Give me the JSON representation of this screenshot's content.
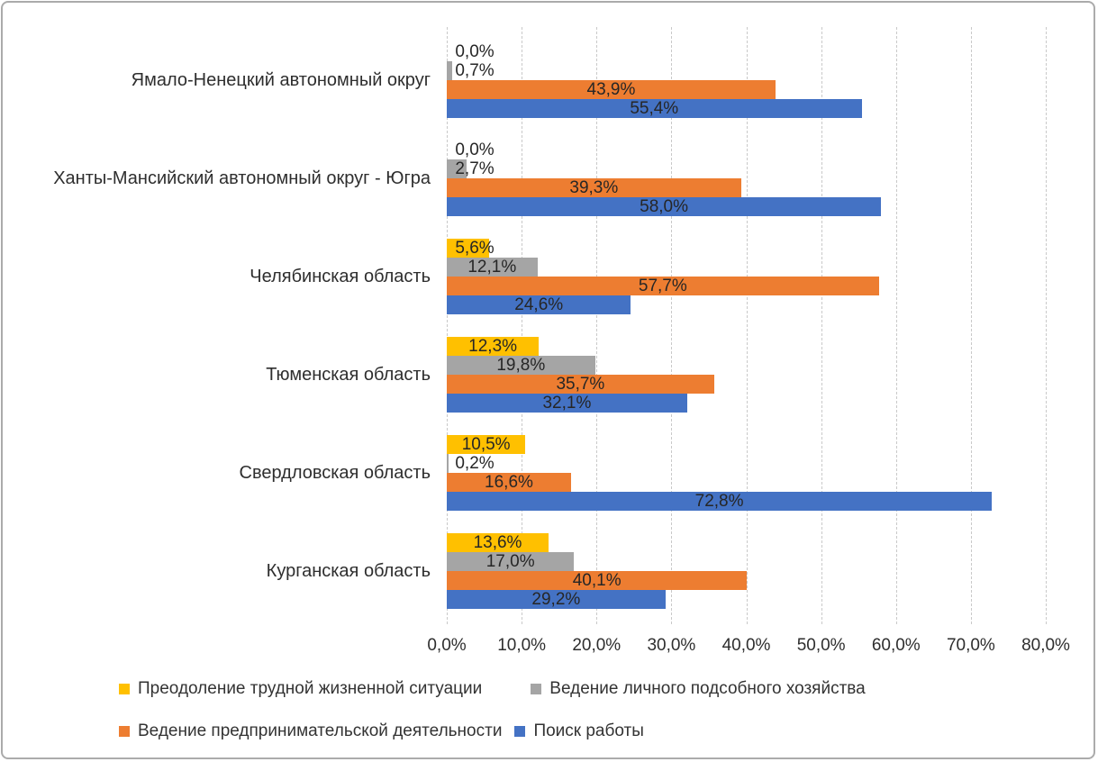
{
  "chart_data": {
    "type": "bar",
    "orientation": "horizontal",
    "title": "",
    "xlabel": "",
    "ylabel": "",
    "xlim": [
      0,
      80
    ],
    "grid": true,
    "legend_position": "bottom",
    "categories": [
      "Ямало-Ненецкий автономный округ",
      "Ханты-Мансийский автономный округ - Югра",
      "Челябинская область",
      "Тюменская область",
      "Свердловская область",
      "Курганская область"
    ],
    "series": [
      {
        "name": "Преодоление трудной жизненной ситуации",
        "color": "#FFC000",
        "values": [
          0.0,
          0.0,
          5.6,
          12.3,
          10.5,
          13.6
        ],
        "labels": [
          "0,0%",
          "0,0%",
          "5,6%",
          "12,3%",
          "10,5%",
          "13,6%"
        ]
      },
      {
        "name": "Ведение личного подсобного хозяйства",
        "color": "#A5A5A5",
        "values": [
          0.7,
          2.7,
          12.1,
          19.8,
          0.2,
          17.0
        ],
        "labels": [
          "0,7%",
          "2,7%",
          "12,1%",
          "19,8%",
          "0,2%",
          "17,0%"
        ]
      },
      {
        "name": "Ведение предпринимательской деятельности",
        "color": "#ED7D31",
        "values": [
          43.9,
          39.3,
          57.7,
          35.7,
          16.6,
          40.1
        ],
        "labels": [
          "43,9%",
          "39,3%",
          "57,7%",
          "35,7%",
          "16,6%",
          "40,1%"
        ]
      },
      {
        "name": "Поиск работы",
        "color": "#4472C4",
        "values": [
          55.4,
          58.0,
          24.6,
          32.1,
          72.8,
          29.2
        ],
        "labels": [
          "55,4%",
          "58,0%",
          "24,6%",
          "32,1%",
          "72,8%",
          "29,2%"
        ]
      }
    ],
    "x_ticks": {
      "values": [
        0,
        10,
        20,
        30,
        40,
        50,
        60,
        70,
        80
      ],
      "labels": [
        "0,0%",
        "10,0%",
        "20,0%",
        "30,0%",
        "40,0%",
        "50,0%",
        "60,0%",
        "70,0%",
        "80,0%"
      ]
    }
  },
  "colors": {
    "grid": "#c9c9c9",
    "text": "#2e2e2e",
    "frame_border": "#ababab",
    "background": "#ffffff"
  }
}
